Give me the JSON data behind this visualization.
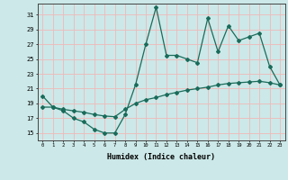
{
  "xlabel": "Humidex (Indice chaleur)",
  "bg_color": "#cce8e8",
  "line_color": "#1a6b5a",
  "grid_color": "#f0b8b8",
  "x_data": [
    0,
    1,
    2,
    3,
    4,
    5,
    6,
    7,
    8,
    9,
    10,
    11,
    12,
    13,
    14,
    15,
    16,
    17,
    18,
    19,
    20,
    21,
    22,
    23
  ],
  "y_main": [
    20,
    18.5,
    18,
    17,
    16.5,
    15.5,
    15,
    15,
    17.5,
    21.5,
    27,
    32,
    25.5,
    25.5,
    25,
    24.5,
    30.5,
    26,
    29.5,
    27.5,
    28,
    28.5,
    24,
    21.5
  ],
  "y_trend": [
    18.5,
    18.5,
    18.2,
    18.0,
    17.8,
    17.5,
    17.3,
    17.2,
    18.2,
    19.0,
    19.5,
    19.8,
    20.2,
    20.5,
    20.8,
    21.0,
    21.2,
    21.5,
    21.7,
    21.8,
    21.9,
    22.0,
    21.8,
    21.5
  ],
  "ylim": [
    14,
    32.5
  ],
  "yticks": [
    15,
    17,
    19,
    21,
    23,
    25,
    27,
    29,
    31
  ],
  "xlim": [
    -0.5,
    23.5
  ]
}
